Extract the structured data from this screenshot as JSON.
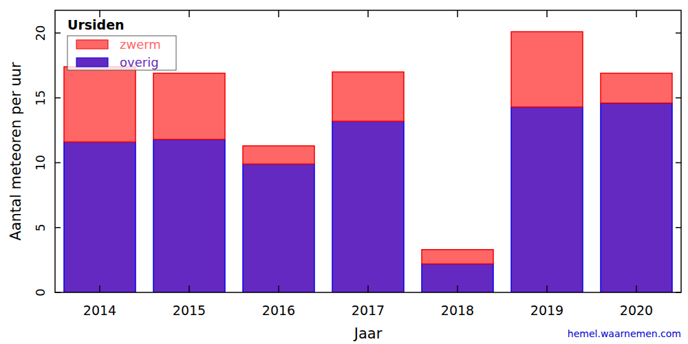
{
  "chart_data": {
    "type": "bar",
    "title": "Ursiden",
    "x_label": "Jaar",
    "y_label": "Aantal meteoren per uur",
    "annotations": [
      "hemel.waarnemen.com"
    ],
    "categories": [
      "2014",
      "2015",
      "2016",
      "2017",
      "2018",
      "2019",
      "2020"
    ],
    "series": [
      {
        "name": "zwerm",
        "color": "#ff6666",
        "values": [
          5.8,
          5.1,
          1.4,
          3.8,
          1.1,
          5.8,
          2.3
        ]
      },
      {
        "name": "overig",
        "color": "#6329c0",
        "values": [
          11.6,
          11.8,
          9.9,
          13.2,
          2.2,
          14.3,
          14.6
        ]
      }
    ],
    "stacked": true,
    "legend": "upper left",
    "grid": false,
    "ylim": [
      0,
      21.75
    ],
    "yticks": [
      0,
      5,
      10,
      15,
      20
    ]
  }
}
